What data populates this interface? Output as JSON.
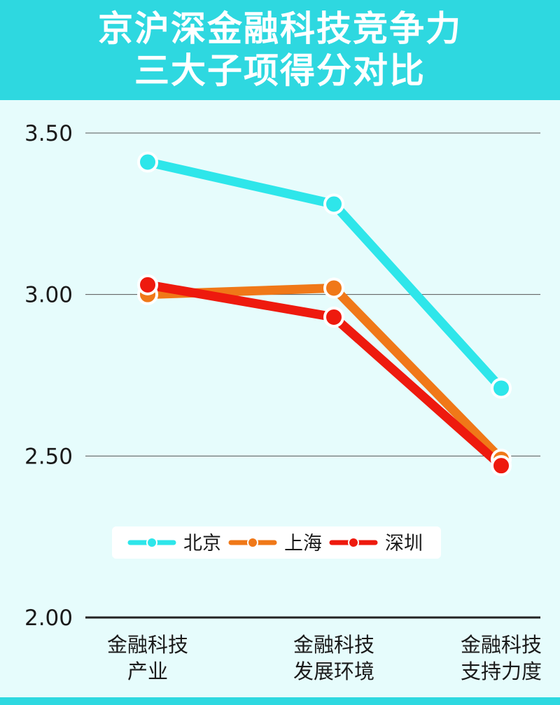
{
  "title": {
    "line1": "京沪深金融科技竞争力",
    "line2": "三大子项得分对比"
  },
  "colors": {
    "header_bg": "#2ed8e0",
    "page_bg": "#e6fcfc"
  },
  "chart_data": {
    "type": "line",
    "title": "京沪深金融科技竞争力三大子项得分对比",
    "categories": [
      [
        "金融科技",
        "产业"
      ],
      [
        "金融科技",
        "发展环境"
      ],
      [
        "金融科技",
        "支持力度"
      ]
    ],
    "ylim": [
      2.0,
      3.5
    ],
    "yticks": [
      "2.00",
      "2.50",
      "3.00",
      "3.50"
    ],
    "grid": true,
    "legend_position": "bottom-center",
    "series": [
      {
        "name": "北京",
        "color": "#2ee6ea",
        "values": [
          3.41,
          3.28,
          2.71
        ]
      },
      {
        "name": "上海",
        "color": "#f07818",
        "values": [
          3.0,
          3.02,
          2.49
        ]
      },
      {
        "name": "深圳",
        "color": "#ee1a0e",
        "values": [
          3.03,
          2.93,
          2.47
        ]
      }
    ]
  }
}
